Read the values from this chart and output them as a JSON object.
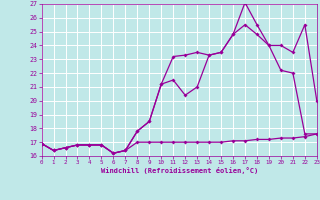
{
  "xlabel": "Windchill (Refroidissement éolien,°C)",
  "bg_color": "#c0e8e8",
  "grid_color": "#ffffff",
  "line_color": "#990099",
  "xmin": 0,
  "xmax": 23,
  "ymin": 16,
  "ymax": 27,
  "line1_x": [
    0,
    1,
    2,
    3,
    4,
    5,
    6,
    7,
    8,
    9,
    10,
    11,
    12,
    13,
    14,
    15,
    16,
    17,
    18,
    19,
    20,
    21,
    22,
    23
  ],
  "line1_y": [
    16.9,
    16.4,
    16.6,
    16.8,
    16.8,
    16.8,
    16.2,
    16.4,
    17.0,
    17.0,
    17.0,
    17.0,
    17.0,
    17.0,
    17.0,
    17.0,
    17.1,
    17.1,
    17.2,
    17.2,
    17.3,
    17.3,
    17.4,
    17.6
  ],
  "line2_x": [
    0,
    1,
    2,
    3,
    4,
    5,
    6,
    7,
    8,
    9,
    10,
    11,
    12,
    13,
    14,
    15,
    16,
    17,
    18,
    19,
    20,
    21,
    22,
    23
  ],
  "line2_y": [
    16.9,
    16.4,
    16.6,
    16.8,
    16.8,
    16.8,
    16.2,
    16.4,
    17.8,
    18.5,
    21.2,
    23.2,
    23.3,
    23.5,
    23.3,
    23.5,
    24.8,
    27.1,
    25.5,
    24.0,
    22.2,
    22.0,
    17.6,
    17.6
  ],
  "line3_x": [
    0,
    1,
    2,
    3,
    4,
    5,
    6,
    7,
    8,
    9,
    10,
    11,
    12,
    13,
    14,
    15,
    16,
    17,
    18,
    19,
    20,
    21,
    22,
    23
  ],
  "line3_y": [
    16.9,
    16.4,
    16.6,
    16.8,
    16.8,
    16.8,
    16.2,
    16.4,
    17.8,
    18.5,
    21.2,
    21.5,
    20.4,
    21.0,
    23.3,
    23.5,
    24.8,
    25.5,
    24.8,
    24.0,
    24.0,
    23.5,
    25.5,
    20.0
  ],
  "yticks": [
    16,
    17,
    18,
    19,
    20,
    21,
    22,
    23,
    24,
    25,
    26,
    27
  ],
  "xticks": [
    0,
    1,
    2,
    3,
    4,
    5,
    6,
    7,
    8,
    9,
    10,
    11,
    12,
    13,
    14,
    15,
    16,
    17,
    18,
    19,
    20,
    21,
    22,
    23
  ]
}
